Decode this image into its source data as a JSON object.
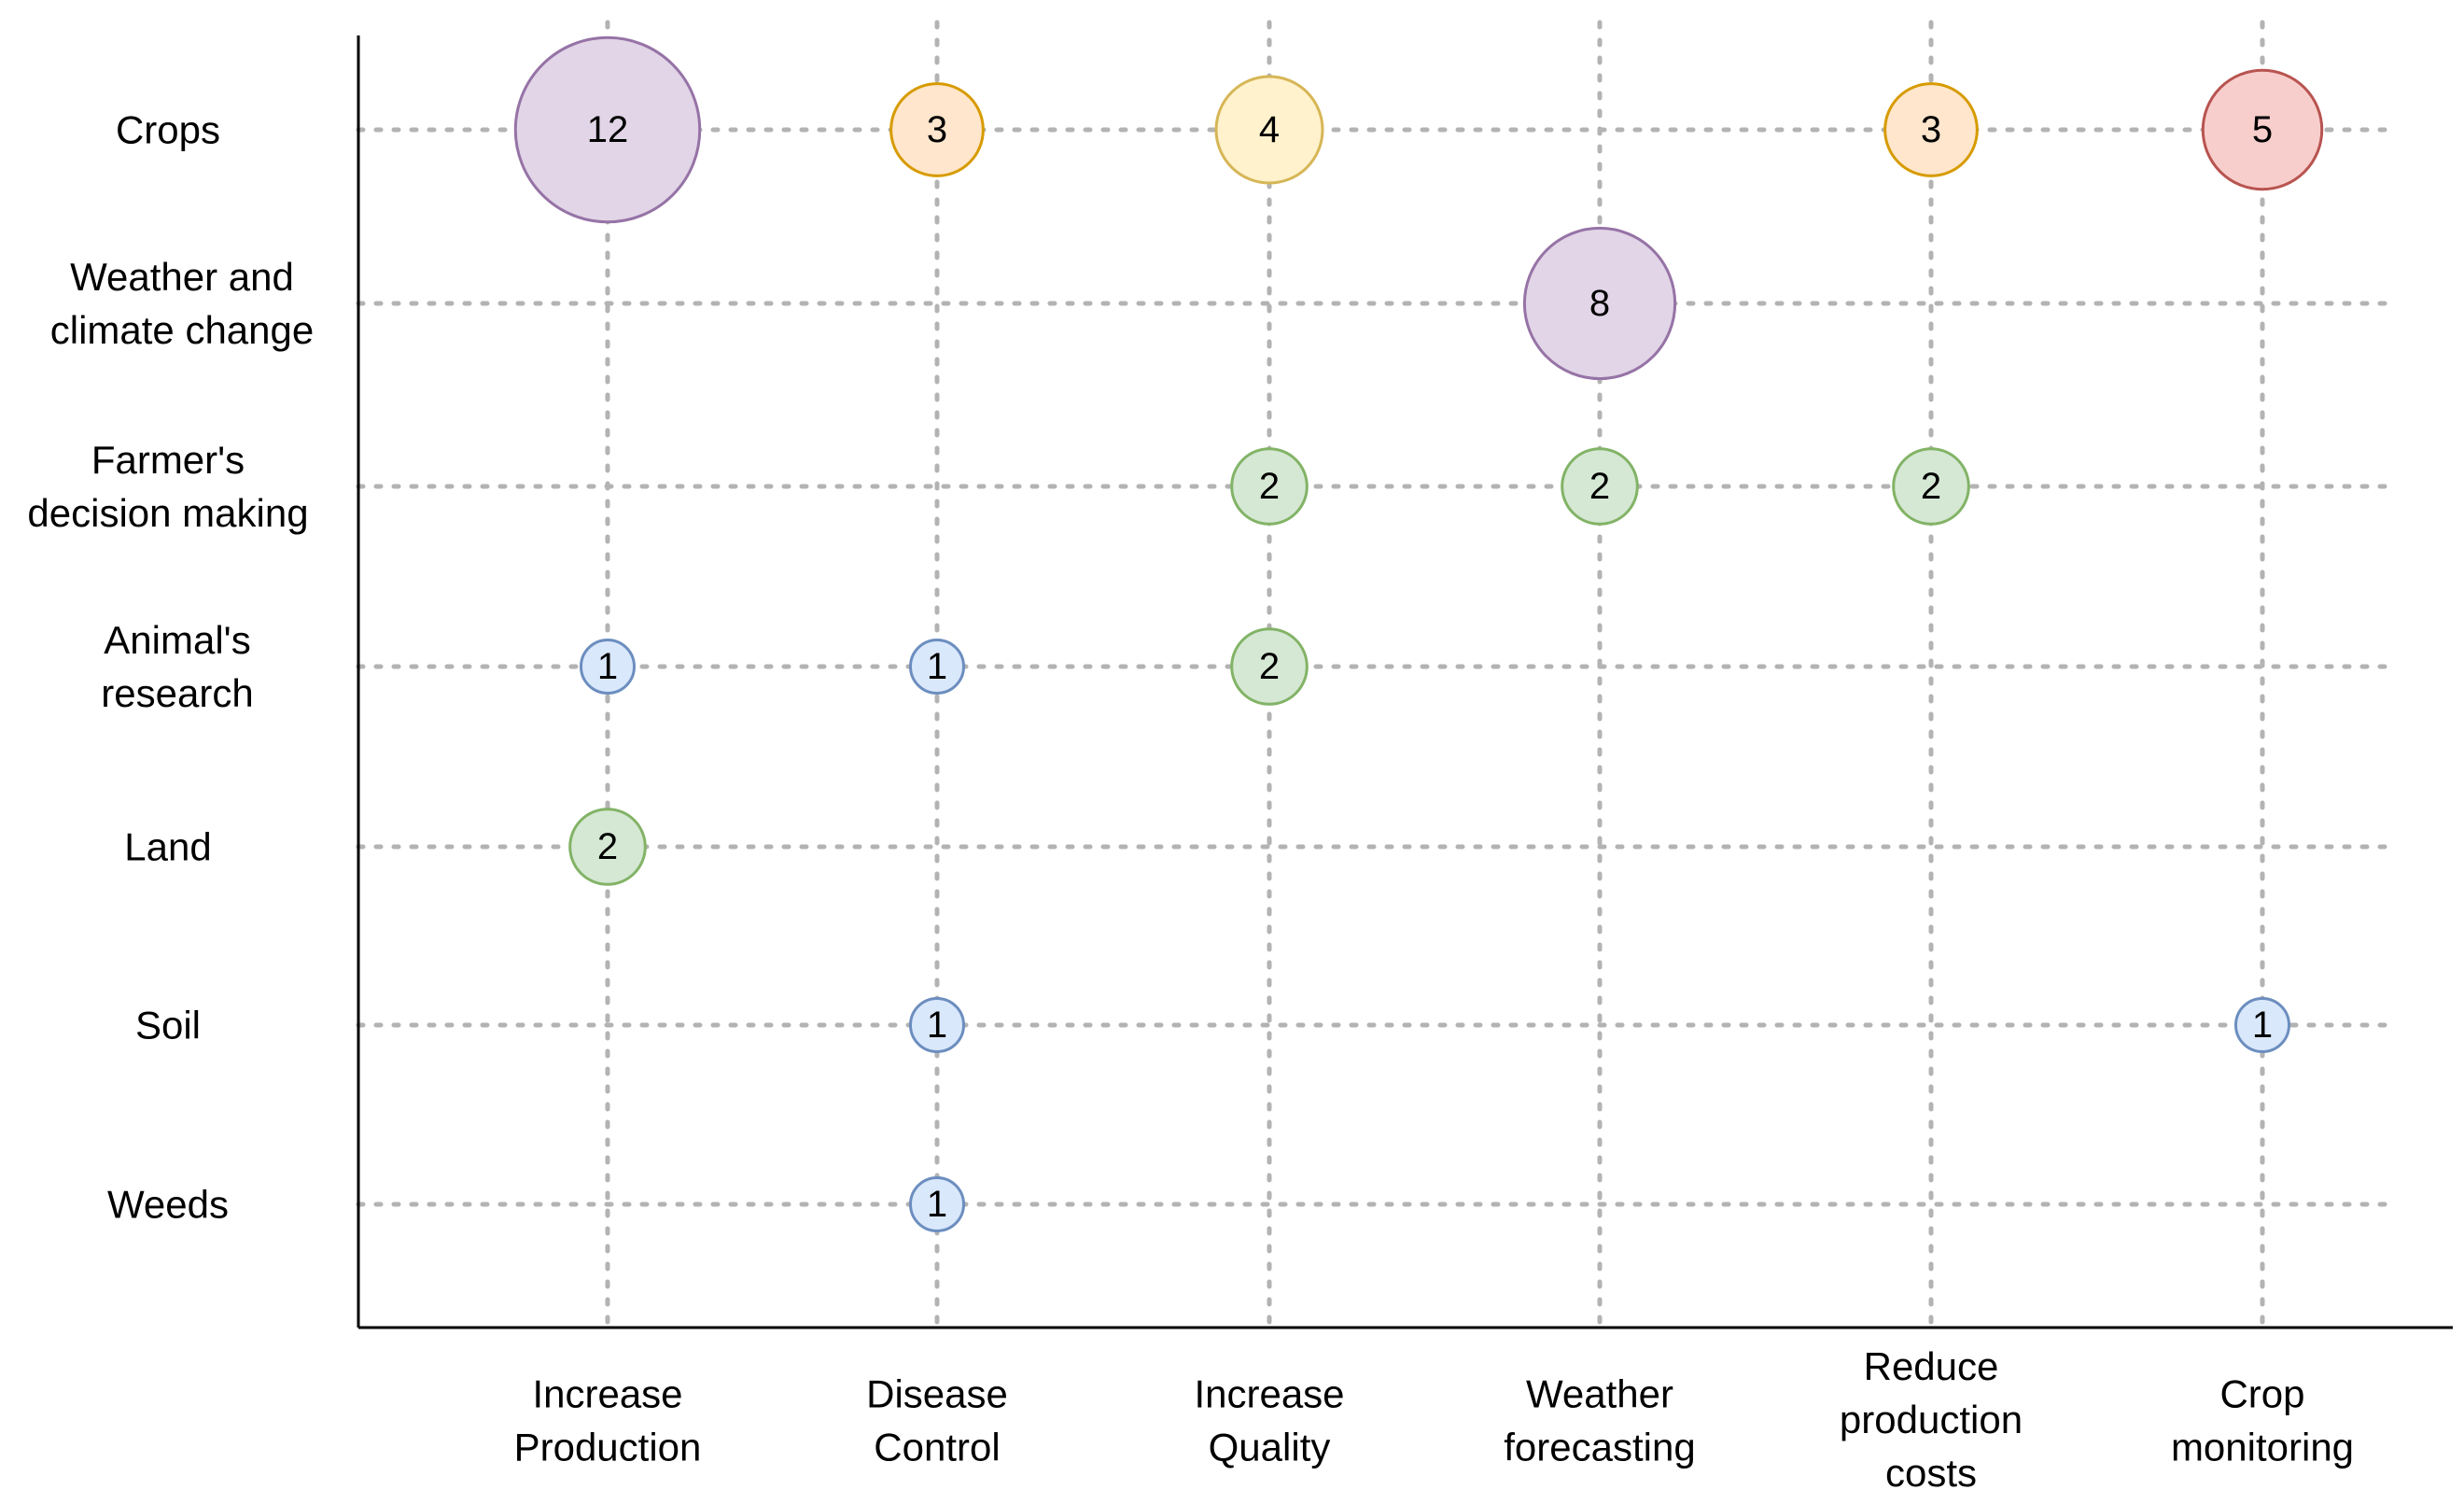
{
  "chart_data": {
    "type": "scatter",
    "subtype": "bubble-matrix",
    "title": "",
    "xlabel": "",
    "ylabel": "",
    "grid": true,
    "rows": [
      {
        "lines": [
          "Crops"
        ]
      },
      {
        "lines": [
          "Weather and",
          "climate change"
        ]
      },
      {
        "lines": [
          "Farmer's",
          "decision making"
        ]
      },
      {
        "lines": [
          "Animal's",
          "research"
        ]
      },
      {
        "lines": [
          "Land"
        ]
      },
      {
        "lines": [
          "Soil"
        ]
      },
      {
        "lines": [
          "Weeds"
        ]
      }
    ],
    "columns": [
      {
        "lines": [
          "Increase",
          "Production"
        ]
      },
      {
        "lines": [
          "Disease",
          "Control"
        ]
      },
      {
        "lines": [
          "Increase",
          "Quality"
        ]
      },
      {
        "lines": [
          "Weather",
          "forecasting"
        ]
      },
      {
        "lines": [
          "Reduce",
          "production",
          "costs"
        ]
      },
      {
        "lines": [
          "Crop",
          "monitoring"
        ]
      }
    ],
    "points": [
      {
        "row": 0,
        "col": 0,
        "value": 12,
        "color": "purple"
      },
      {
        "row": 0,
        "col": 1,
        "value": 3,
        "color": "orange"
      },
      {
        "row": 0,
        "col": 2,
        "value": 4,
        "color": "yellow"
      },
      {
        "row": 0,
        "col": 4,
        "value": 3,
        "color": "orange"
      },
      {
        "row": 0,
        "col": 5,
        "value": 5,
        "color": "red"
      },
      {
        "row": 1,
        "col": 3,
        "value": 8,
        "color": "purple"
      },
      {
        "row": 2,
        "col": 2,
        "value": 2,
        "color": "green"
      },
      {
        "row": 2,
        "col": 3,
        "value": 2,
        "color": "green"
      },
      {
        "row": 2,
        "col": 4,
        "value": 2,
        "color": "green"
      },
      {
        "row": 3,
        "col": 0,
        "value": 1,
        "color": "blue"
      },
      {
        "row": 3,
        "col": 1,
        "value": 1,
        "color": "blue"
      },
      {
        "row": 3,
        "col": 2,
        "value": 2,
        "color": "green"
      },
      {
        "row": 4,
        "col": 0,
        "value": 2,
        "color": "green"
      },
      {
        "row": 5,
        "col": 1,
        "value": 1,
        "color": "blue"
      },
      {
        "row": 5,
        "col": 5,
        "value": 1,
        "color": "blue"
      },
      {
        "row": 6,
        "col": 1,
        "value": 1,
        "color": "blue"
      }
    ],
    "palette": {
      "purple": {
        "fill": "#e1d5e7",
        "stroke": "#9673a6"
      },
      "orange": {
        "fill": "#ffe6cc",
        "stroke": "#d79b00"
      },
      "yellow": {
        "fill": "#fff2cc",
        "stroke": "#d6b656"
      },
      "red": {
        "fill": "#f8cecc",
        "stroke": "#b85450"
      },
      "green": {
        "fill": "#d5e8d4",
        "stroke": "#82b366"
      },
      "blue": {
        "fill": "#dae8fc",
        "stroke": "#6c8ebf"
      }
    },
    "grid_color": "#b3b3b3",
    "axis_color": "#000000"
  }
}
